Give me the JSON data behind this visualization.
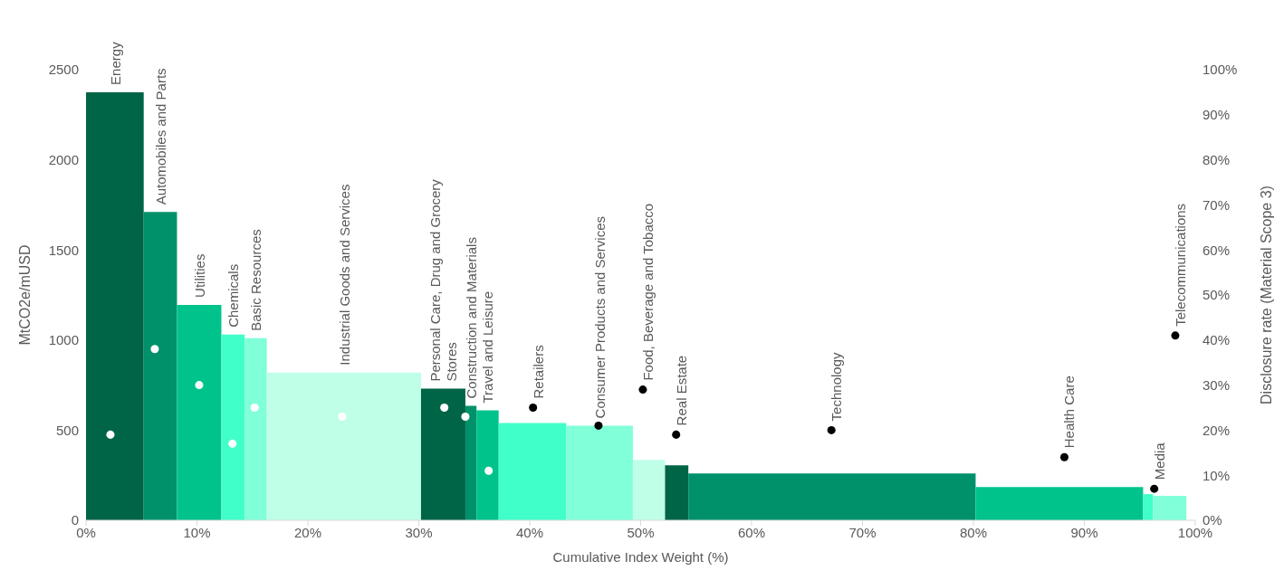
{
  "chart_data": {
    "type": "histogram",
    "xlabel": "Cumulative Index Weight (%)",
    "ylabel": "MtCO2e/mUSD",
    "y2label": "Disclosure rate (Material Scope 3)",
    "series": [
      {
        "bins": [
          0,
          5.2,
          8.2,
          12.2,
          14.3,
          16.3,
          30.2,
          34.2,
          35.2,
          37.2,
          43.3,
          49.3,
          52.2,
          54.3,
          80.2,
          95.3,
          96.2,
          99.2
        ],
        "values": [
          2375,
          1710,
          1195,
          1030,
          1010,
          820,
          730,
          635,
          610,
          540,
          525,
          335,
          305,
          260,
          185,
          145,
          135
        ],
        "colors": [
          "#006446",
          "#00916a",
          "#00c38c",
          "#40ffc8",
          "#80ffd8",
          "#bfffe8",
          "#006446",
          "#00916a",
          "#00c38c",
          "#40ffc8",
          "#80ffd8",
          "#bfffe8",
          "#006446",
          "#00916a",
          "#00c38c",
          "#40ffc8",
          "#80ffd8"
        ]
      },
      {
        "type": "scatter",
        "axis": "y2",
        "x": [
          2.2,
          6.2,
          10.2,
          13.2,
          15.2,
          23.1,
          32.3,
          34.2,
          36.3,
          40.3,
          46.2,
          50.2,
          53.2,
          67.2,
          88.2,
          96.3,
          98.2
        ],
        "values": [
          19,
          38,
          30,
          17,
          25,
          23,
          25,
          23,
          11,
          25,
          21,
          29,
          19,
          20,
          14,
          7,
          41
        ],
        "colors": [
          "#ffffff",
          "#ffffff",
          "#ffffff",
          "#ffffff",
          "#ffffff",
          "#ffffff",
          "#ffffff",
          "#ffffff",
          "#ffffff",
          "#000000",
          "#000000",
          "#000000",
          "#000000",
          "#000000",
          "#000000",
          "#000000",
          "#000000"
        ]
      }
    ],
    "xlim": [
      0,
      100
    ],
    "xticks": [
      {
        "value": 0,
        "label": "0%"
      },
      {
        "value": 10,
        "label": "10%"
      },
      {
        "value": 20,
        "label": "20%"
      },
      {
        "value": 30,
        "label": "30%"
      },
      {
        "value": 40,
        "label": "40%"
      },
      {
        "value": 50,
        "label": "50%"
      },
      {
        "value": 60,
        "label": "60%"
      },
      {
        "value": 70,
        "label": "70%"
      },
      {
        "value": 80,
        "label": "80%"
      },
      {
        "value": 90,
        "label": "90%"
      },
      {
        "value": 100,
        "label": "100%"
      }
    ],
    "ylim": [
      0,
      2500
    ],
    "yticks": [
      0,
      500,
      1000,
      1500,
      2000,
      2500
    ],
    "y2lim": [
      0,
      100
    ],
    "y2ticks": [
      {
        "value": 0,
        "label": "0%"
      },
      {
        "value": 10,
        "label": "10%"
      },
      {
        "value": 20,
        "label": "20%"
      },
      {
        "value": 30,
        "label": "30%"
      },
      {
        "value": 40,
        "label": "40%"
      },
      {
        "value": 50,
        "label": "50%"
      },
      {
        "value": 60,
        "label": "60%"
      },
      {
        "value": 70,
        "label": "70%"
      },
      {
        "value": 80,
        "label": "80%"
      },
      {
        "value": 90,
        "label": "90%"
      },
      {
        "value": 100,
        "label": "100%"
      }
    ],
    "grid": false,
    "legend": false,
    "annotations": [
      "Energy",
      "Automobiles and Parts",
      "Utilities",
      "Chemicals",
      "Basic Resources",
      "Industrial Goods and Services",
      "Personal Care, Drug and Grocery Stores",
      "Construction and Materials",
      "Travel and Leisure",
      "Retailers",
      "Consumer Products and Services",
      "Food, Beverage and Tobacco",
      "Real Estate",
      "Technology",
      "Health Care",
      "Media",
      "Telecommunications"
    ]
  }
}
